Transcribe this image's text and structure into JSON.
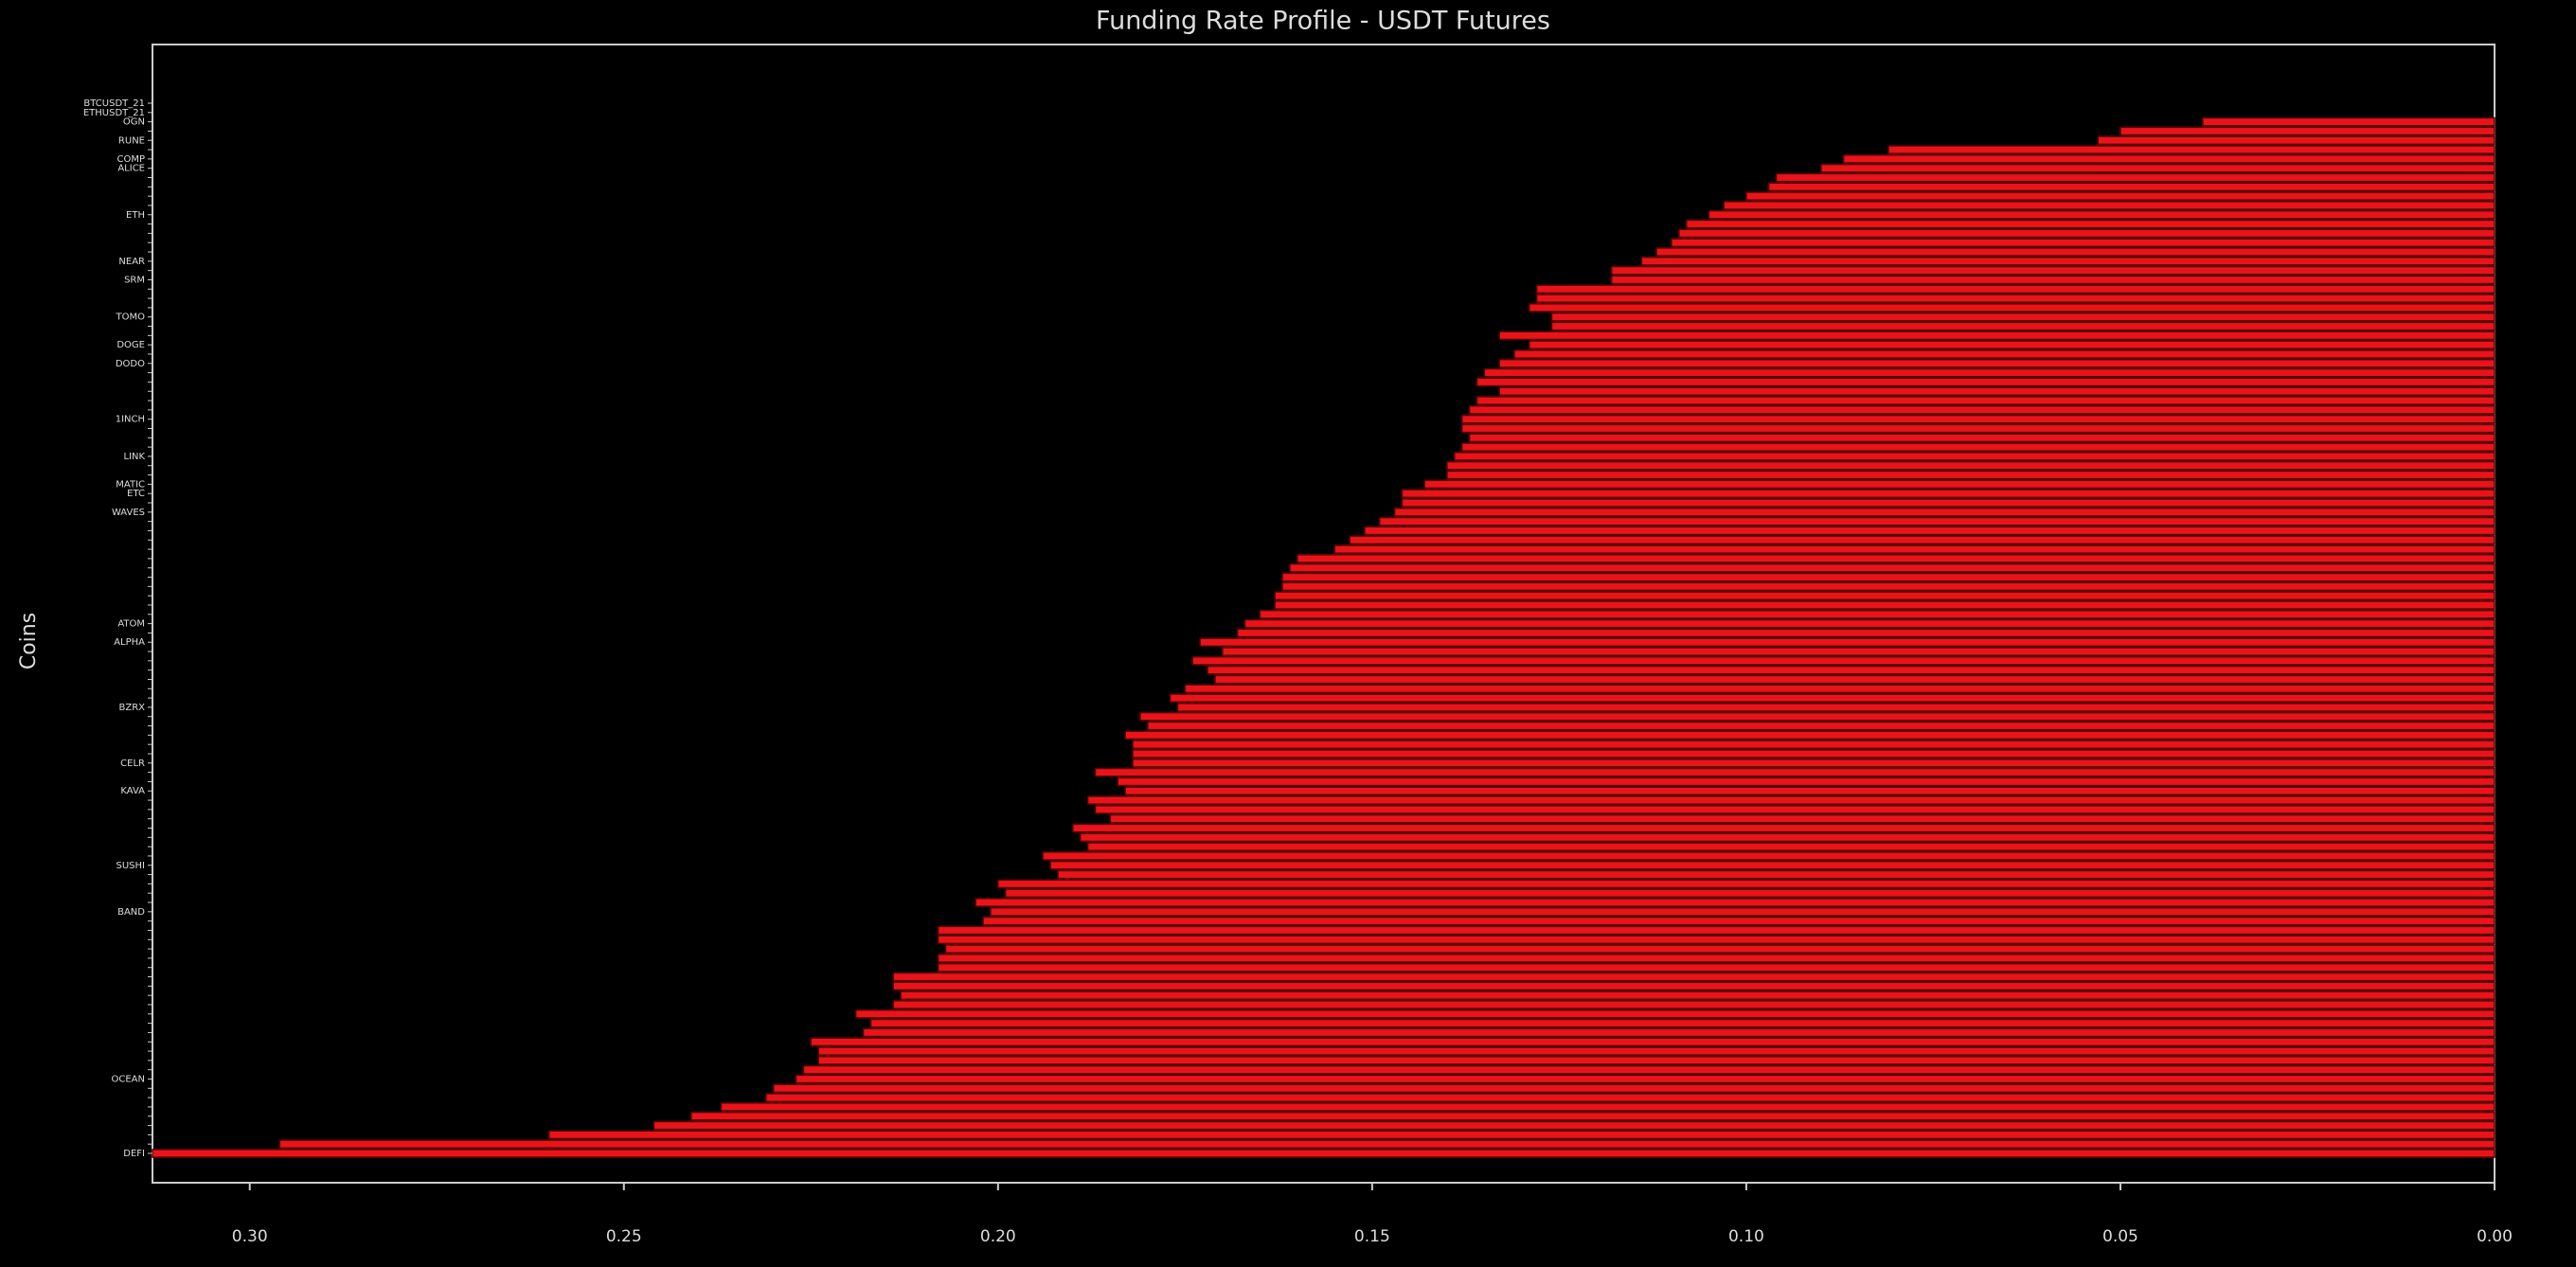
{
  "chart_data": {
    "type": "barh",
    "title": "Funding Rate Profile - USDT Futures",
    "y_label": "Coins",
    "categories": [
      "BTCUSDT_21",
      "ETHUSDT_21",
      "OGN",
      null,
      "RUNE",
      null,
      "COMP",
      "ALICE",
      null,
      null,
      null,
      null,
      "ETH",
      null,
      null,
      null,
      null,
      "NEAR",
      null,
      "SRM",
      null,
      null,
      null,
      "TOMO",
      null,
      null,
      "DOGE",
      null,
      "DODO",
      null,
      null,
      null,
      null,
      null,
      "1INCH",
      null,
      null,
      null,
      "LINK",
      null,
      null,
      "MATIC",
      "ETC",
      null,
      "WAVES",
      null,
      null,
      null,
      null,
      null,
      null,
      null,
      null,
      null,
      null,
      null,
      "ATOM",
      null,
      "ALPHA",
      null,
      null,
      null,
      null,
      null,
      null,
      "BZRX",
      null,
      null,
      null,
      null,
      null,
      "CELR",
      null,
      null,
      "KAVA",
      null,
      null,
      null,
      null,
      null,
      null,
      null,
      "SUSHI",
      null,
      null,
      null,
      null,
      "BAND",
      null,
      null,
      null,
      null,
      null,
      null,
      null,
      null,
      null,
      null,
      null,
      null,
      null,
      null,
      null,
      null,
      null,
      "OCEAN",
      null,
      null,
      null,
      null,
      null,
      null,
      null,
      "DEFI"
    ],
    "values": [
      0,
      0,
      0.039,
      0.05,
      0.053,
      0.081,
      0.087,
      0.09,
      0.096,
      0.097,
      0.1,
      0.103,
      0.105,
      0.108,
      0.109,
      0.11,
      0.112,
      0.114,
      0.118,
      0.118,
      0.128,
      0.128,
      0.129,
      0.126,
      0.126,
      0.133,
      0.129,
      0.131,
      0.133,
      0.135,
      0.136,
      0.133,
      0.136,
      0.137,
      0.138,
      0.138,
      0.137,
      0.138,
      0.139,
      0.14,
      0.14,
      0.143,
      0.146,
      0.146,
      0.147,
      0.149,
      0.151,
      0.153,
      0.155,
      0.16,
      0.161,
      0.162,
      0.162,
      0.163,
      0.163,
      0.165,
      0.167,
      0.168,
      0.173,
      0.17,
      0.174,
      0.172,
      0.171,
      0.175,
      0.177,
      0.176,
      0.181,
      0.18,
      0.183,
      0.182,
      0.182,
      0.182,
      0.187,
      0.184,
      0.183,
      0.188,
      0.187,
      0.185,
      0.19,
      0.189,
      0.188,
      0.194,
      0.193,
      0.192,
      0.2,
      0.199,
      0.203,
      0.201,
      0.202,
      0.208,
      0.208,
      0.207,
      0.208,
      0.208,
      0.214,
      0.214,
      0.213,
      0.214,
      0.219,
      0.217,
      0.218,
      0.225,
      0.224,
      0.224,
      0.226,
      0.227,
      0.23,
      0.231,
      0.237,
      0.241,
      0.246,
      0.26,
      0.296,
      0.313
    ],
    "color": "#e8141a",
    "edgecolor": "#5a0000",
    "xlim": [
      0.313,
      0
    ],
    "xticks": [
      {
        "value": 0.3,
        "label": "0.30"
      },
      0.25,
      {
        "value": 0.2,
        "label": "0.20"
      },
      0.15,
      {
        "value": 0.1,
        "label": "0.10"
      },
      0.05,
      {
        "value": 0,
        "label": "0.00"
      }
    ]
  }
}
